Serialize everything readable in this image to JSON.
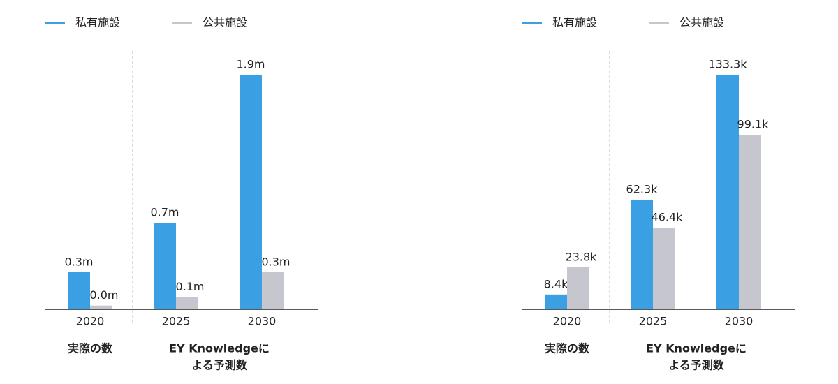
{
  "chart_data": [
    {
      "type": "bar",
      "categories": [
        "2020",
        "2025",
        "2030"
      ],
      "group_labels": [
        [
          "実際の数"
        ],
        [
          "EY Knowledgeに",
          "よる予測数"
        ]
      ],
      "series": [
        {
          "name": "私有施設",
          "color": "#3a9fe3",
          "values": [
            0.3,
            0.7,
            1.9
          ],
          "value_labels": [
            "0.3m",
            "0.7m",
            "1.9m"
          ]
        },
        {
          "name": "公共施設",
          "color": "#c6c6ce",
          "values": [
            0.03,
            0.1,
            0.3
          ],
          "value_labels": [
            "0.0m",
            "0.1m",
            "0.3m"
          ]
        }
      ]
    },
    {
      "type": "bar",
      "categories": [
        "2020",
        "2025",
        "2030"
      ],
      "group_labels": [
        [
          "実際の数"
        ],
        [
          "EY Knowledgeに",
          "よる予測数"
        ]
      ],
      "series": [
        {
          "name": "私有施設",
          "color": "#3a9fe3",
          "values": [
            8.4,
            62.3,
            133.3
          ],
          "value_labels": [
            "8.4k",
            "62.3k",
            "133.3k"
          ]
        },
        {
          "name": "公共施設",
          "color": "#c6c6ce",
          "values": [
            23.8,
            46.4,
            99.1
          ],
          "value_labels": [
            "23.8k",
            "46.4k",
            "99.1k"
          ]
        }
      ]
    }
  ]
}
